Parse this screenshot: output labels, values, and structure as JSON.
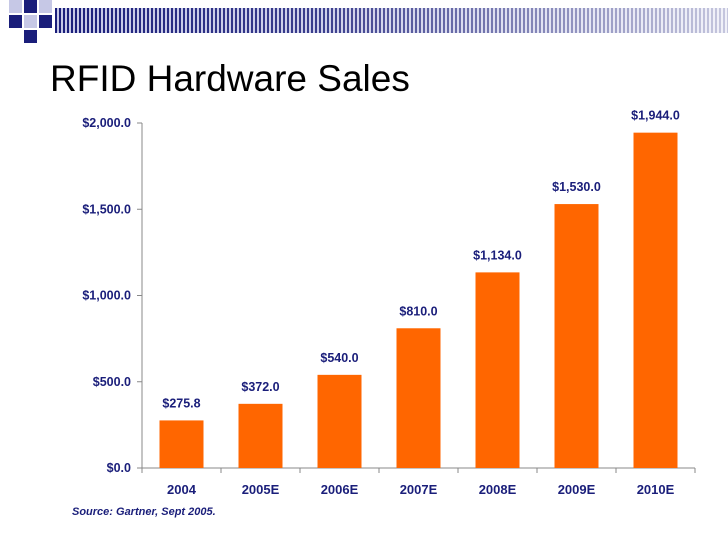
{
  "slide": {
    "title": "RFID Hardware Sales",
    "source": "Source: Gartner, Sept 2005."
  },
  "colors": {
    "bar": "#ff6600",
    "text": "#1a1e7a",
    "axis": "#888888",
    "deco_dark": "#1a1e7a",
    "deco_light": "#c6c8e6"
  },
  "chart_data": {
    "type": "bar",
    "title": "RFID Hardware Sales",
    "xlabel": "",
    "ylabel": "",
    "categories": [
      "2004",
      "2005E",
      "2006E",
      "2007E",
      "2008E",
      "2009E",
      "2010E"
    ],
    "values": [
      275.8,
      372.0,
      540.0,
      810.0,
      1134.0,
      1530.0,
      1944.0
    ],
    "value_labels": [
      "$275.8",
      "$372.0",
      "$540.0",
      "$810.0",
      "$1,134.0",
      "$1,530.0",
      "$1,944.0"
    ],
    "ylim": [
      0,
      2000
    ],
    "y_ticks": [
      0,
      500,
      1000,
      1500,
      2000
    ],
    "y_tick_labels": [
      "$0.0",
      "$500.0",
      "$1,000.0",
      "$1,500.0",
      "$2,000.0"
    ],
    "grid": false,
    "legend": "none"
  }
}
